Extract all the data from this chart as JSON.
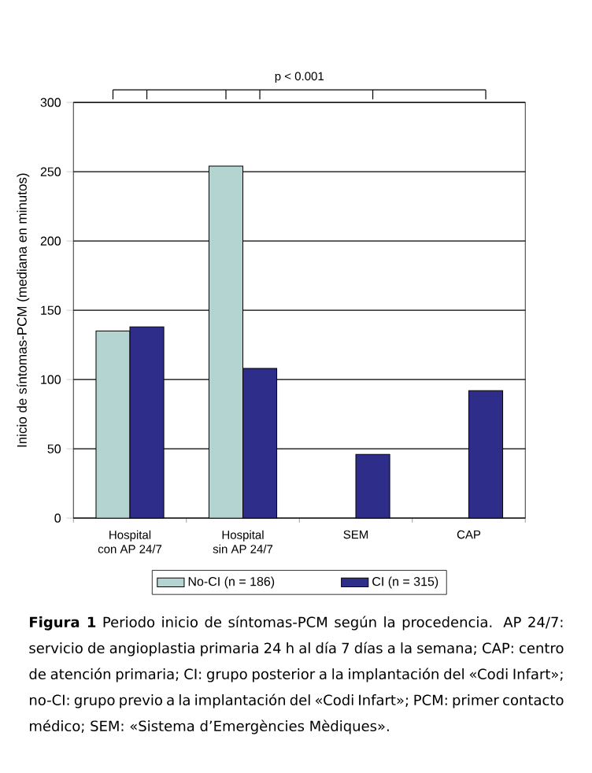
{
  "chart_data": {
    "type": "bar",
    "ylabel": "Inicio de síntomas-PCM (mediana en minutos)",
    "categories": [
      "Hospital\ncon AP 24/7",
      "Hospital\nsin AP 24/7",
      "SEM",
      "CAP"
    ],
    "series": [
      {
        "name": "No-CI (n = 186)",
        "color": "#b4d4d2",
        "values": [
          135,
          254,
          null,
          null
        ]
      },
      {
        "name": "CI (n = 315)",
        "color": "#2e2e8a",
        "values": [
          138,
          108,
          46,
          92
        ]
      }
    ],
    "ylim": [
      0,
      300
    ],
    "yticks": [
      0,
      50,
      100,
      150,
      200,
      250,
      300
    ],
    "grid": "y",
    "legend": "bottom",
    "annotations": [
      "p < 0.001",
      "**Figura 1**    Periodo inicio de síntomas-PCM según la procedencia. AP 24/7: servicio de angioplastia primaria 24 h al día 7 días a la semana; CAP: centro de atención primaria; CI: grupo posterior a la implantación del «Codi Infart»; no-CI: grupo previo a la implantación del «Codi Infart»; PCM: primer contacto médico; SEM: «Sistema d’Emergències Mèdiques»."
    ]
  }
}
